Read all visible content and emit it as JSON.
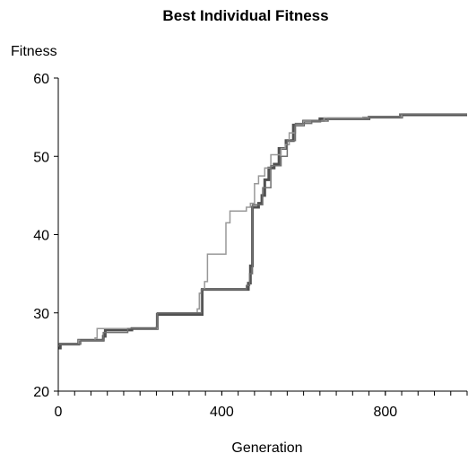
{
  "chart_data": {
    "type": "line",
    "title": "Best Individual Fitness",
    "xlabel": "Generation",
    "ylabel": "Fitness",
    "xlim": [
      0,
      1000
    ],
    "ylim": [
      20,
      60
    ],
    "xticks": [
      0,
      400,
      800
    ],
    "xtick_labels": [
      "0",
      "400",
      "800"
    ],
    "xminor_step": 40,
    "yticks": [
      20,
      30,
      40,
      50,
      60
    ],
    "ytick_labels": [
      "20",
      "30",
      "40",
      "50",
      "60"
    ],
    "grid": false,
    "legend": "none",
    "series": [
      {
        "color": "#505050",
        "points": [
          [
            0,
            25.5
          ],
          [
            5,
            26.0
          ],
          [
            40,
            26.0
          ],
          [
            50,
            26.5
          ],
          [
            110,
            27.0
          ],
          [
            115,
            27.8
          ],
          [
            180,
            28.0
          ],
          [
            240,
            28.0
          ],
          [
            242,
            29.8
          ],
          [
            350,
            29.8
          ],
          [
            352,
            33.0
          ],
          [
            410,
            33.0
          ],
          [
            455,
            33.0
          ],
          [
            465,
            33.8
          ],
          [
            470,
            36.0
          ],
          [
            475,
            43.5
          ],
          [
            490,
            44.0
          ],
          [
            498,
            45.0
          ],
          [
            505,
            47.0
          ],
          [
            515,
            48.5
          ],
          [
            528,
            49.0
          ],
          [
            540,
            51.0
          ],
          [
            557,
            52.0
          ],
          [
            575,
            54.0
          ],
          [
            590,
            54.0
          ],
          [
            600,
            54.5
          ],
          [
            630,
            54.5
          ],
          [
            640,
            54.8
          ],
          [
            700,
            54.8
          ],
          [
            760,
            55.0
          ],
          [
            830,
            55.0
          ],
          [
            840,
            55.3
          ],
          [
            1000,
            55.3
          ]
        ]
      },
      {
        "color": "#989898",
        "points": [
          [
            0,
            26.0
          ],
          [
            50,
            26.5
          ],
          [
            90,
            26.8
          ],
          [
            95,
            28.0
          ],
          [
            200,
            28.0
          ],
          [
            240,
            28.0
          ],
          [
            242,
            30.0
          ],
          [
            320,
            30.0
          ],
          [
            340,
            30.5
          ],
          [
            345,
            32.5
          ],
          [
            350,
            33.0
          ],
          [
            358,
            34.0
          ],
          [
            365,
            37.5
          ],
          [
            400,
            37.5
          ],
          [
            410,
            41.5
          ],
          [
            420,
            43.0
          ],
          [
            450,
            43.0
          ],
          [
            460,
            43.5
          ],
          [
            470,
            44.0
          ],
          [
            480,
            46.5
          ],
          [
            490,
            47.5
          ],
          [
            505,
            48.5
          ],
          [
            520,
            50.2
          ],
          [
            540,
            50.2
          ],
          [
            545,
            51.0
          ],
          [
            555,
            51.5
          ],
          [
            565,
            53.0
          ],
          [
            580,
            54.0
          ],
          [
            600,
            54.5
          ],
          [
            640,
            54.5
          ],
          [
            650,
            54.9
          ],
          [
            730,
            54.9
          ],
          [
            745,
            55.0
          ],
          [
            830,
            55.0
          ],
          [
            840,
            55.4
          ],
          [
            1000,
            55.4
          ]
        ]
      },
      {
        "color": "#707070",
        "points": [
          [
            0,
            26.0
          ],
          [
            55,
            26.5
          ],
          [
            110,
            27.5
          ],
          [
            170,
            28.0
          ],
          [
            240,
            28.2
          ],
          [
            242,
            30.0
          ],
          [
            345,
            30.0
          ],
          [
            350,
            33.0
          ],
          [
            460,
            33.5
          ],
          [
            468,
            35.0
          ],
          [
            475,
            43.8
          ],
          [
            500,
            46.0
          ],
          [
            520,
            48.8
          ],
          [
            545,
            50.0
          ],
          [
            560,
            52.0
          ],
          [
            580,
            54.2
          ],
          [
            620,
            54.5
          ],
          [
            660,
            54.8
          ],
          [
            760,
            55.0
          ],
          [
            835,
            55.4
          ],
          [
            1000,
            55.4
          ]
        ]
      }
    ]
  }
}
